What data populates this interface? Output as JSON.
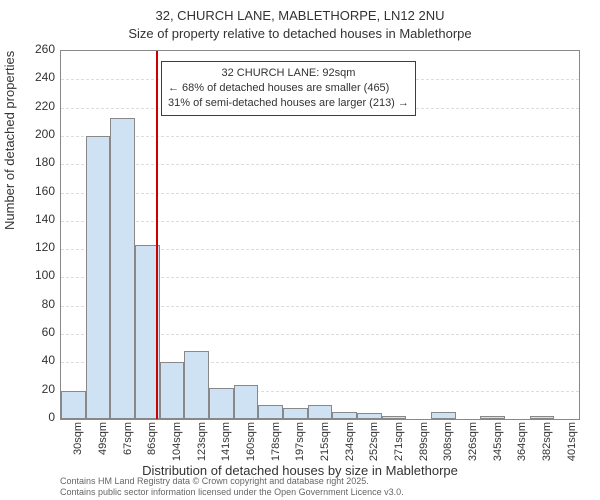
{
  "title_line1": "32, CHURCH LANE, MABLETHORPE, LN12 2NU",
  "title_line2": "Size of property relative to detached houses in Mablethorpe",
  "xlabel": "Distribution of detached houses by size in Mablethorpe",
  "ylabel": "Number of detached properties",
  "annotation": {
    "title": "32 CHURCH LANE: 92sqm",
    "line1": "← 68% of detached houses are smaller (465)",
    "line2": "31% of semi-detached houses are larger (213) →"
  },
  "credit_line1": "Contains HM Land Registry data © Crown copyright and database right 2025.",
  "credit_line2": "Contains public sector information licensed under the Open Government Licence v3.0.",
  "chart": {
    "type": "bar",
    "bar_fill": "#cfe2f3",
    "bar_stroke": "#888888",
    "refline_color": "#cc0000",
    "ref_x_value": 92,
    "ylim": [
      0,
      260
    ],
    "ytick_step": 20,
    "x_categories": [
      "30sqm",
      "49sqm",
      "67sqm",
      "86sqm",
      "104sqm",
      "123sqm",
      "141sqm",
      "160sqm",
      "178sqm",
      "197sqm",
      "215sqm",
      "234sqm",
      "252sqm",
      "271sqm",
      "289sqm",
      "308sqm",
      "326sqm",
      "345sqm",
      "364sqm",
      "382sqm",
      "401sqm"
    ],
    "values": [
      20,
      200,
      213,
      123,
      40,
      48,
      22,
      24,
      10,
      8,
      10,
      5,
      4,
      2,
      0,
      5,
      0,
      2,
      0,
      2,
      0
    ],
    "plot_bg": "#ffffff",
    "grid_color": "#dddddd",
    "axis_fontsize": 12,
    "title_fontsize": 13,
    "label_fontsize": 13,
    "annot_border": "#cc0000",
    "annot_bg": "#ffffff"
  }
}
